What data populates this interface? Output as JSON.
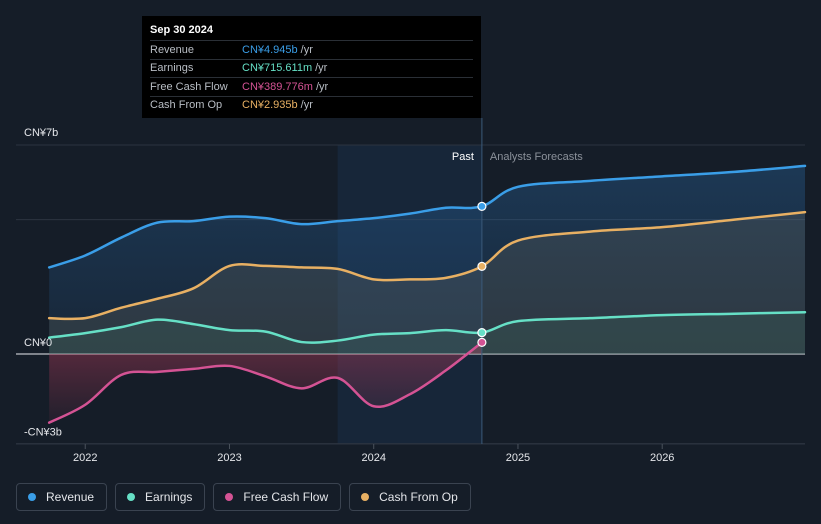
{
  "tooltip": {
    "date": "Sep 30 2024",
    "rows": [
      {
        "label": "Revenue",
        "value": "CN¥4.945b",
        "unit": "/yr",
        "color": "#3a9ee8"
      },
      {
        "label": "Earnings",
        "value": "CN¥715.611m",
        "unit": "/yr",
        "color": "#66e0c6"
      },
      {
        "label": "Free Cash Flow",
        "value": "CN¥389.776m",
        "unit": "/yr",
        "color": "#d45394"
      },
      {
        "label": "Cash From Op",
        "value": "CN¥2.935b",
        "unit": "/yr",
        "color": "#e8b063"
      }
    ]
  },
  "section_labels": {
    "past": "Past",
    "forecast": "Analysts Forecasts"
  },
  "legend": [
    {
      "label": "Revenue",
      "color": "#3a9ee8"
    },
    {
      "label": "Earnings",
      "color": "#66e0c6"
    },
    {
      "label": "Free Cash Flow",
      "color": "#d45394"
    },
    {
      "label": "Cash From Op",
      "color": "#e8b063"
    }
  ],
  "chart_data": {
    "type": "line",
    "title": "",
    "xlabel": "",
    "ylabel": "",
    "y_tick_labels": [
      {
        "value": 7,
        "label": "CN¥7b"
      },
      {
        "value": 0,
        "label": "CN¥0"
      },
      {
        "value": -3,
        "label": "-CN¥3b"
      }
    ],
    "x_tick_labels": [
      {
        "value": 2022.0,
        "label": "2022"
      },
      {
        "value": 2023.0,
        "label": "2023"
      },
      {
        "value": 2024.0,
        "label": "2024"
      },
      {
        "value": 2025.0,
        "label": "2025"
      },
      {
        "value": 2026.0,
        "label": "2026"
      }
    ],
    "xlim": [
      2021.52,
      2026.99
    ],
    "ylim": [
      -3,
      7
    ],
    "past_end": 2024.75,
    "highlight_start": 2023.75,
    "series": [
      {
        "name": "Revenue",
        "color": "#3a9ee8",
        "unit": "CN¥b",
        "x": [
          2021.75,
          2022.0,
          2022.25,
          2022.5,
          2022.75,
          2023.0,
          2023.25,
          2023.5,
          2023.75,
          2024.0,
          2024.25,
          2024.5,
          2024.75,
          2025.0,
          2025.5,
          2026.0,
          2026.5,
          2026.99
        ],
        "values": [
          2.9,
          3.3,
          3.9,
          4.4,
          4.45,
          4.6,
          4.55,
          4.35,
          4.45,
          4.55,
          4.7,
          4.9,
          4.945,
          5.6,
          5.8,
          5.95,
          6.1,
          6.3
        ]
      },
      {
        "name": "Earnings",
        "color": "#66e0c6",
        "unit": "CN¥b",
        "x": [
          2021.75,
          2022.0,
          2022.25,
          2022.5,
          2022.75,
          2023.0,
          2023.25,
          2023.5,
          2023.75,
          2024.0,
          2024.25,
          2024.5,
          2024.75,
          2025.0,
          2025.5,
          2026.0,
          2026.5,
          2026.99
        ],
        "values": [
          0.55,
          0.7,
          0.9,
          1.15,
          1.0,
          0.8,
          0.75,
          0.4,
          0.45,
          0.65,
          0.7,
          0.8,
          0.716,
          1.1,
          1.2,
          1.3,
          1.35,
          1.4
        ]
      },
      {
        "name": "Free Cash Flow",
        "color": "#d45394",
        "unit": "CN¥b",
        "x": [
          2021.75,
          2022.0,
          2022.25,
          2022.5,
          2022.75,
          2023.0,
          2023.25,
          2023.5,
          2023.75,
          2024.0,
          2024.25,
          2024.5,
          2024.75
        ],
        "values": [
          -2.3,
          -1.7,
          -0.7,
          -0.6,
          -0.5,
          -0.4,
          -0.75,
          -1.15,
          -0.8,
          -1.75,
          -1.35,
          -0.55,
          0.39
        ]
      },
      {
        "name": "Cash From Op",
        "color": "#e8b063",
        "unit": "CN¥b",
        "x": [
          2021.75,
          2022.0,
          2022.25,
          2022.5,
          2022.75,
          2023.0,
          2023.25,
          2023.5,
          2023.75,
          2024.0,
          2024.25,
          2024.5,
          2024.75,
          2025.0,
          2025.5,
          2026.0,
          2026.5,
          2026.99
        ],
        "values": [
          1.2,
          1.2,
          1.55,
          1.85,
          2.2,
          2.95,
          2.95,
          2.9,
          2.85,
          2.5,
          2.5,
          2.55,
          2.935,
          3.8,
          4.1,
          4.25,
          4.5,
          4.75
        ]
      }
    ]
  }
}
